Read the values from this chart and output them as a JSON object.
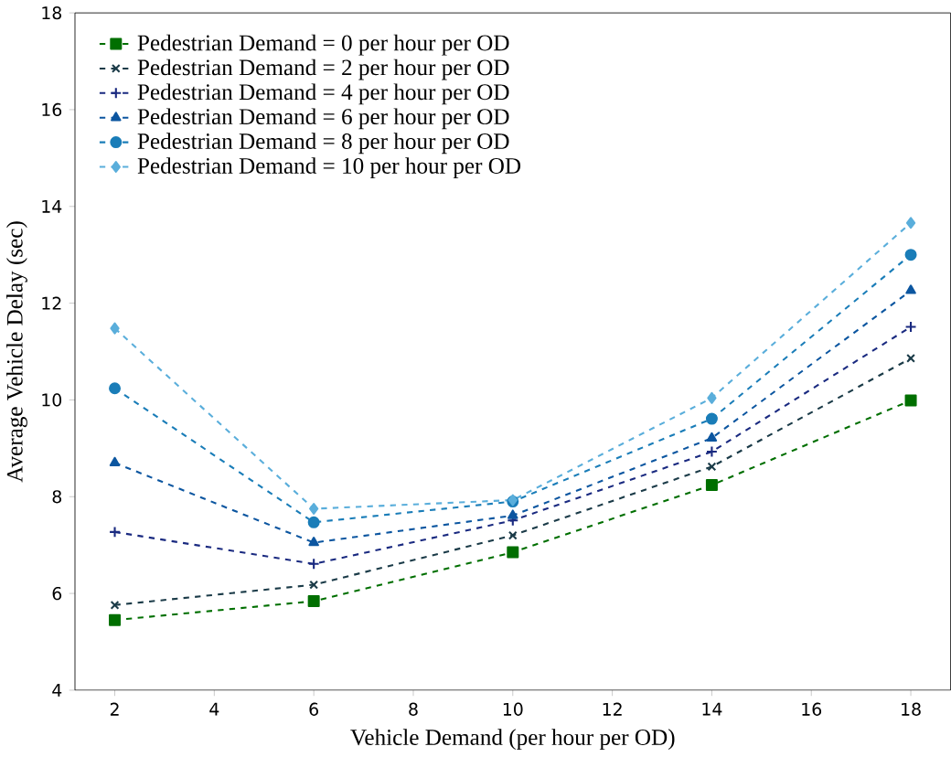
{
  "chart_data": {
    "type": "line",
    "xlabel": "Vehicle Demand (per hour per OD)",
    "ylabel": "Average Vehicle Delay (sec)",
    "x": [
      2,
      6,
      10,
      14,
      18
    ],
    "xlim": [
      1.2,
      18.8
    ],
    "ylim": [
      4,
      18
    ],
    "xticks": [
      2,
      4,
      6,
      8,
      10,
      12,
      14,
      16,
      18
    ],
    "yticks": [
      4,
      6,
      8,
      10,
      12,
      14,
      16,
      18
    ],
    "grid": false,
    "legend": "top left",
    "line_style": "dashed",
    "series": [
      {
        "name": "Pedestrian Demand = 0 per hour per OD",
        "color": "#006f00",
        "marker": "square",
        "values": [
          5.45,
          5.84,
          6.85,
          8.24,
          9.99
        ]
      },
      {
        "name": "Pedestrian Demand = 2 per hour per OD",
        "color": "#1b3b48",
        "marker": "cross",
        "values": [
          5.76,
          6.18,
          7.2,
          8.62,
          10.86
        ]
      },
      {
        "name": "Pedestrian Demand = 4 per hour per OD",
        "color": "#1a2a80",
        "marker": "plus",
        "values": [
          7.27,
          6.61,
          7.51,
          8.93,
          11.51
        ]
      },
      {
        "name": "Pedestrian Demand = 6 per hour per OD",
        "color": "#0c56a0",
        "marker": "triangle",
        "values": [
          8.7,
          7.05,
          7.61,
          9.21,
          12.26
        ]
      },
      {
        "name": "Pedestrian Demand = 8 per hour per OD",
        "color": "#1a7db8",
        "marker": "circle",
        "values": [
          10.24,
          7.47,
          7.9,
          9.61,
          13.0
        ]
      },
      {
        "name": "Pedestrian Demand = 10 per hour per OD",
        "color": "#5aaedb",
        "marker": "diamond",
        "values": [
          11.48,
          7.75,
          7.93,
          10.04,
          13.66
        ]
      }
    ]
  }
}
